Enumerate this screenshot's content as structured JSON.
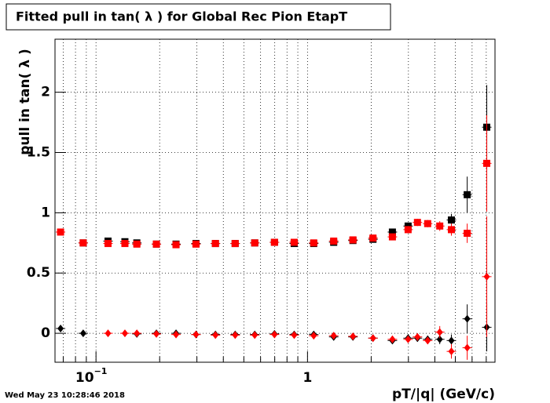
{
  "chart_data": {
    "type": "scatter",
    "title": "Fitted pull in tan( λ ) for Global Rec Pion EtapT",
    "y_label": "pull in tan( λ )",
    "x_label": "pT/|q| (GeV/c)",
    "timestamp": "Wed May 23 10:28:46 2018",
    "log_x": true,
    "grid": true,
    "xlim": [
      0.064,
      7.7
    ],
    "ylim": [
      -0.24,
      2.44
    ],
    "xticks": [
      {
        "value": 0.1,
        "label": "10",
        "exponent": "−1"
      },
      1
    ],
    "xminor_ticks": [
      0.07,
      0.08,
      0.09,
      0.2,
      0.3,
      0.4,
      0.5,
      0.6,
      0.7,
      0.8,
      0.9,
      2,
      3,
      4,
      5,
      6,
      7
    ],
    "yticks": [
      0,
      0.5,
      1,
      1.5,
      2
    ],
    "x": [
      0.068,
      0.087,
      0.114,
      0.137,
      0.156,
      0.193,
      0.239,
      0.297,
      0.367,
      0.455,
      0.563,
      0.698,
      0.865,
      1.07,
      1.33,
      1.64,
      2.04,
      2.52,
      2.99,
      3.31,
      3.7,
      4.22,
      4.79,
      5.69,
      7.04
    ],
    "series": [
      {
        "marker": "square",
        "color": "#000000",
        "values": [
          null,
          0.75,
          0.765,
          0.76,
          0.75,
          0.74,
          0.74,
          0.745,
          0.745,
          0.745,
          0.75,
          0.755,
          0.745,
          0.745,
          0.755,
          0.77,
          0.78,
          0.84,
          0.89,
          null,
          null,
          null,
          0.94,
          1.15,
          1.71
        ],
        "errors": [
          null,
          0.01,
          0.01,
          0.01,
          0.01,
          0.01,
          0.01,
          0.01,
          0.01,
          0.01,
          0.01,
          0.01,
          0.01,
          0.01,
          0.01,
          0.01,
          0.015,
          0.02,
          0.03,
          null,
          null,
          null,
          0.05,
          0.15,
          0.35
        ]
      },
      {
        "marker": "diamond",
        "color": "#000000",
        "values": [
          0.04,
          0.0,
          null,
          null,
          -0.005,
          0.0,
          0.0,
          -0.01,
          -0.01,
          -0.01,
          -0.01,
          -0.005,
          -0.01,
          -0.01,
          -0.03,
          -0.03,
          -0.04,
          -0.06,
          -0.04,
          -0.04,
          -0.05,
          -0.05,
          -0.06,
          0.12,
          0.05
        ],
        "errors": [
          0.01,
          0.01,
          null,
          null,
          0.01,
          0.01,
          0.01,
          0.01,
          0.01,
          0.01,
          0.01,
          0.01,
          0.01,
          0.01,
          0.01,
          0.01,
          0.015,
          0.02,
          0.02,
          0.03,
          0.03,
          0.04,
          0.05,
          0.12,
          0.2
        ]
      },
      {
        "marker": "square",
        "color": "#ff0000",
        "values": [
          0.84,
          0.75,
          0.745,
          0.745,
          0.74,
          0.74,
          0.735,
          0.74,
          0.745,
          0.745,
          0.75,
          0.755,
          0.755,
          0.75,
          0.765,
          0.775,
          0.79,
          0.8,
          0.86,
          0.92,
          0.91,
          0.89,
          0.86,
          0.83,
          1.41
        ],
        "errors": [
          0.02,
          0.01,
          0.01,
          0.01,
          0.01,
          0.01,
          0.01,
          0.01,
          0.01,
          0.01,
          0.01,
          0.01,
          0.01,
          0.01,
          0.01,
          0.01,
          0.015,
          0.02,
          0.03,
          0.03,
          0.03,
          0.04,
          0.05,
          0.08,
          0.4
        ]
      },
      {
        "marker": "diamond",
        "color": "#ff0000",
        "values": [
          null,
          null,
          0.0,
          0.0,
          0.0,
          -0.005,
          -0.01,
          -0.01,
          -0.015,
          -0.015,
          -0.015,
          -0.01,
          -0.015,
          -0.02,
          -0.02,
          -0.025,
          -0.04,
          -0.05,
          -0.05,
          -0.03,
          -0.06,
          0.01,
          -0.15,
          -0.12,
          0.47
        ],
        "errors": [
          null,
          null,
          0.01,
          0.01,
          0.01,
          0.01,
          0.01,
          0.01,
          0.01,
          0.01,
          0.01,
          0.01,
          0.01,
          0.01,
          0.01,
          0.01,
          0.015,
          0.02,
          0.02,
          0.03,
          0.03,
          0.05,
          0.06,
          0.1,
          0.5
        ]
      }
    ]
  }
}
